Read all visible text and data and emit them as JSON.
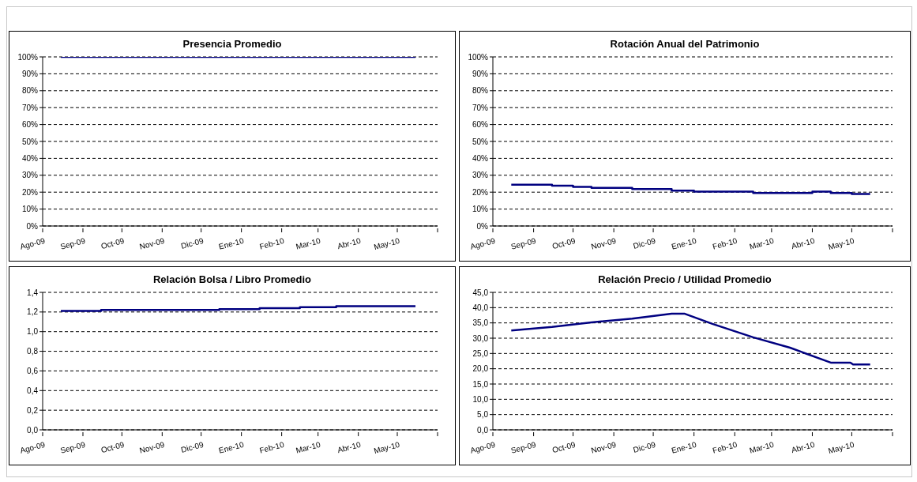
{
  "chart_data": [
    {
      "type": "line",
      "title": "Presencia Promedio",
      "grid": "y",
      "marker": "none",
      "line_style": "solid",
      "xlim": [
        "2009-08-01",
        "2010-06-01"
      ],
      "xticks": [
        {
          "value": "2009-08-01",
          "label": "Ago-09"
        },
        {
          "value": "2009-09-01",
          "label": "Sep-09"
        },
        {
          "value": "2009-10-01",
          "label": "Oct-09"
        },
        {
          "value": "2009-11-01",
          "label": "Nov-09"
        },
        {
          "value": "2009-12-01",
          "label": "Dic-09"
        },
        {
          "value": "2010-01-01",
          "label": "Ene-10"
        },
        {
          "value": "2010-02-01",
          "label": "Feb-10"
        },
        {
          "value": "2010-03-01",
          "label": "Mar-10"
        },
        {
          "value": "2010-04-01",
          "label": "Abr-10"
        },
        {
          "value": "2010-05-01",
          "label": "May-10"
        },
        {
          "value": "2010-06-01",
          "label": null
        }
      ],
      "ylim": [
        0,
        100
      ],
      "yticks": [
        {
          "value": 0,
          "label": "0%"
        },
        {
          "value": 10,
          "label": "10%"
        },
        {
          "value": 20,
          "label": "20%"
        },
        {
          "value": 30,
          "label": "30%"
        },
        {
          "value": 40,
          "label": "40%"
        },
        {
          "value": 50,
          "label": "50%"
        },
        {
          "value": 60,
          "label": "60%"
        },
        {
          "value": 70,
          "label": "70%"
        },
        {
          "value": 80,
          "label": "80%"
        },
        {
          "value": 90,
          "label": "90%"
        },
        {
          "value": 100,
          "label": "100%"
        }
      ],
      "series": [
        {
          "color": "#000080",
          "x": [
            "2009-08-15",
            "2010-05-15"
          ],
          "values": [
            100,
            100
          ]
        }
      ]
    },
    {
      "type": "step",
      "title": "Rotación Anual del Patrimonio",
      "grid": "y",
      "marker": "none",
      "line_style": "solid",
      "xlim": [
        "2009-08-01",
        "2010-06-01"
      ],
      "xticks": [
        {
          "value": "2009-08-01",
          "label": "Ago-09"
        },
        {
          "value": "2009-09-01",
          "label": "Sep-09"
        },
        {
          "value": "2009-10-01",
          "label": "Oct-09"
        },
        {
          "value": "2009-11-01",
          "label": "Nov-09"
        },
        {
          "value": "2009-12-01",
          "label": "Dic-09"
        },
        {
          "value": "2010-01-01",
          "label": "Ene-10"
        },
        {
          "value": "2010-02-01",
          "label": "Feb-10"
        },
        {
          "value": "2010-03-01",
          "label": "Mar-10"
        },
        {
          "value": "2010-04-01",
          "label": "Abr-10"
        },
        {
          "value": "2010-05-01",
          "label": "May-10"
        },
        {
          "value": "2010-06-01",
          "label": null
        }
      ],
      "ylim": [
        0,
        100
      ],
      "yticks": [
        {
          "value": 0,
          "label": "0%"
        },
        {
          "value": 10,
          "label": "10%"
        },
        {
          "value": 20,
          "label": "20%"
        },
        {
          "value": 30,
          "label": "30%"
        },
        {
          "value": 40,
          "label": "40%"
        },
        {
          "value": 50,
          "label": "50%"
        },
        {
          "value": 60,
          "label": "60%"
        },
        {
          "value": 70,
          "label": "70%"
        },
        {
          "value": 80,
          "label": "80%"
        },
        {
          "value": 90,
          "label": "90%"
        },
        {
          "value": 100,
          "label": "100%"
        }
      ],
      "series": [
        {
          "color": "#000080",
          "x": [
            "2009-08-15",
            "2009-09-15",
            "2009-10-01",
            "2009-10-15",
            "2009-11-15",
            "2009-12-15",
            "2010-01-01",
            "2010-02-15",
            "2010-04-01",
            "2010-04-15",
            "2010-05-01",
            "2010-05-15"
          ],
          "values": [
            24.4,
            23.8,
            23.1,
            22.5,
            21.9,
            20.9,
            20.3,
            19.5,
            20.3,
            19.5,
            18.9,
            18.9
          ]
        }
      ]
    },
    {
      "type": "step",
      "title": "Relación Bolsa / Libro Promedio",
      "grid": "y",
      "marker": "none",
      "line_style": "solid",
      "xlim": [
        "2009-08-01",
        "2010-06-01"
      ],
      "xticks": [
        {
          "value": "2009-08-01",
          "label": "Ago-09"
        },
        {
          "value": "2009-09-01",
          "label": "Sep-09"
        },
        {
          "value": "2009-10-01",
          "label": "Oct-09"
        },
        {
          "value": "2009-11-01",
          "label": "Nov-09"
        },
        {
          "value": "2009-12-01",
          "label": "Dic-09"
        },
        {
          "value": "2010-01-01",
          "label": "Ene-10"
        },
        {
          "value": "2010-02-01",
          "label": "Feb-10"
        },
        {
          "value": "2010-03-01",
          "label": "Mar-10"
        },
        {
          "value": "2010-04-01",
          "label": "Abr-10"
        },
        {
          "value": "2010-05-01",
          "label": "May-10"
        },
        {
          "value": "2010-06-01",
          "label": null
        }
      ],
      "ylim": [
        0,
        1.4
      ],
      "yticks": [
        {
          "value": 0,
          "label": "0,0"
        },
        {
          "value": 0.2,
          "label": "0,2"
        },
        {
          "value": 0.4,
          "label": "0,4"
        },
        {
          "value": 0.6,
          "label": "0,6"
        },
        {
          "value": 0.8,
          "label": "0,8"
        },
        {
          "value": 1,
          "label": "1,0"
        },
        {
          "value": 1.2,
          "label": "1,2"
        },
        {
          "value": 1.4,
          "label": "1,4"
        }
      ],
      "series": [
        {
          "color": "#000080",
          "x": [
            "2009-08-15",
            "2009-09-15",
            "2009-12-15",
            "2010-01-15",
            "2010-02-15",
            "2010-03-15",
            "2010-05-15"
          ],
          "values": [
            1.21,
            1.22,
            1.23,
            1.24,
            1.25,
            1.26,
            1.26
          ]
        }
      ]
    },
    {
      "type": "line",
      "title": "Relación Precio / Utilidad Promedio",
      "grid": "y",
      "marker": "none",
      "line_style": "solid",
      "xlim": [
        "2009-08-01",
        "2010-06-01"
      ],
      "xticks": [
        {
          "value": "2009-08-01",
          "label": "Ago-09"
        },
        {
          "value": "2009-09-01",
          "label": "Sep-09"
        },
        {
          "value": "2009-10-01",
          "label": "Oct-09"
        },
        {
          "value": "2009-11-01",
          "label": "Nov-09"
        },
        {
          "value": "2009-12-01",
          "label": "Dic-09"
        },
        {
          "value": "2010-01-01",
          "label": "Ene-10"
        },
        {
          "value": "2010-02-01",
          "label": "Feb-10"
        },
        {
          "value": "2010-03-01",
          "label": "Mar-10"
        },
        {
          "value": "2010-04-01",
          "label": "Abr-10"
        },
        {
          "value": "2010-05-01",
          "label": "May-10"
        },
        {
          "value": "2010-06-01",
          "label": null
        }
      ],
      "ylim": [
        0,
        45
      ],
      "yticks": [
        {
          "value": 0,
          "label": "0,0"
        },
        {
          "value": 5,
          "label": "5,0"
        },
        {
          "value": 10,
          "label": "10,0"
        },
        {
          "value": 15,
          "label": "15,0"
        },
        {
          "value": 20,
          "label": "20,0"
        },
        {
          "value": 25,
          "label": "25,0"
        },
        {
          "value": 30,
          "label": "30,0"
        },
        {
          "value": 35,
          "label": "35,0"
        },
        {
          "value": 40,
          "label": "40,0"
        },
        {
          "value": 45,
          "label": "45,0"
        }
      ],
      "series": [
        {
          "color": "#000080",
          "x": [
            "2009-08-15",
            "2009-09-15",
            "2009-10-15",
            "2009-11-15",
            "2009-12-15",
            "2009-12-25",
            "2010-01-15",
            "2010-02-15",
            "2010-03-15",
            "2010-04-15",
            "2010-04-30",
            "2010-05-02",
            "2010-05-15"
          ],
          "values": [
            32.5,
            33.7,
            35.2,
            36.4,
            38.0,
            38.0,
            34.7,
            30.3,
            26.9,
            22.0,
            22.0,
            21.4,
            21.4
          ]
        }
      ]
    }
  ]
}
